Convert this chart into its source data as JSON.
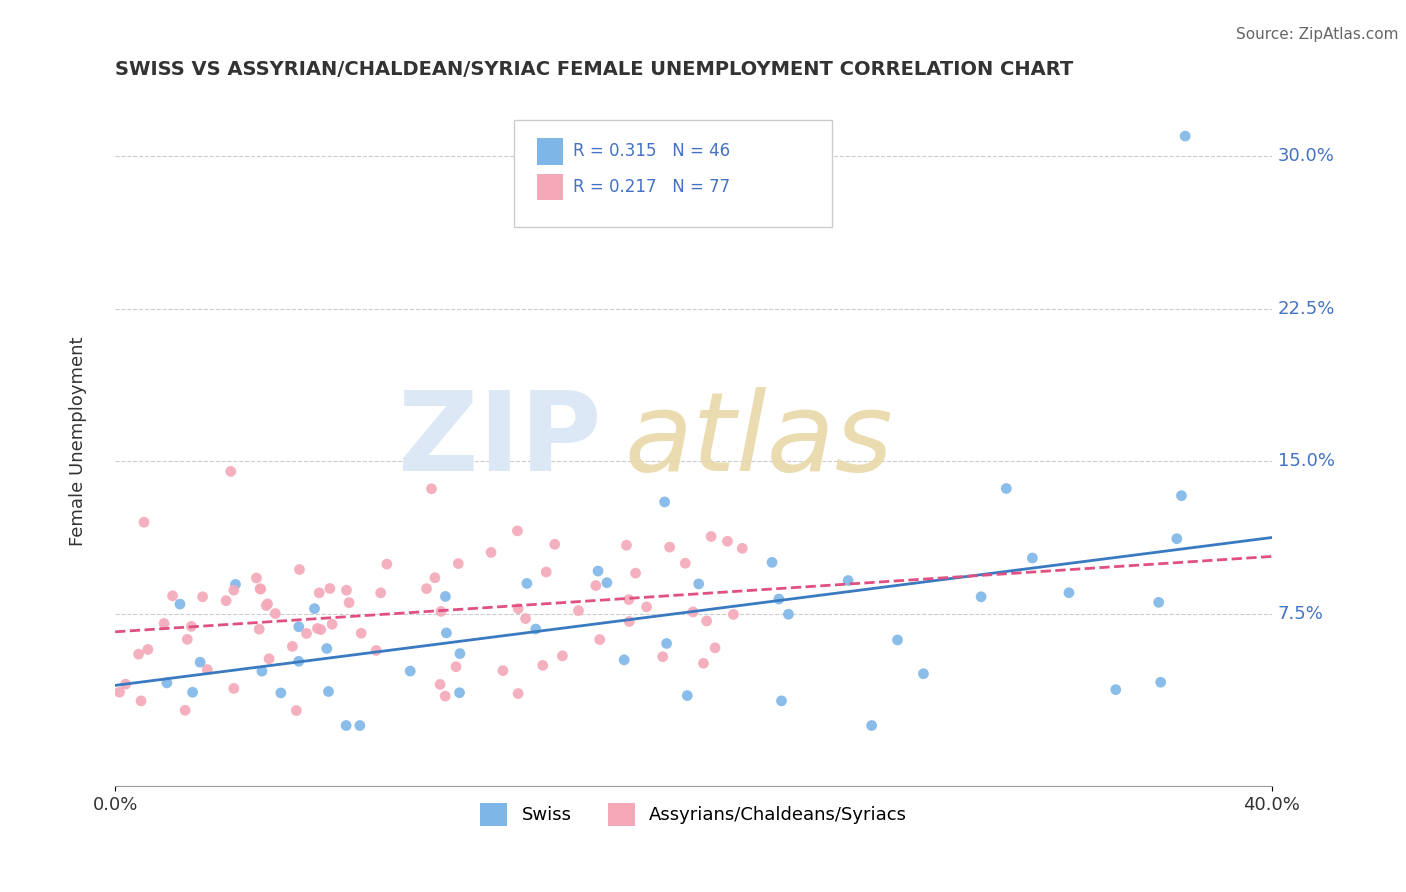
{
  "title": "SWISS VS ASSYRIAN/CHALDEAN/SYRIAC FEMALE UNEMPLOYMENT CORRELATION CHART",
  "source": "Source: ZipAtlas.com",
  "ylabel": "Female Unemployment",
  "yticks": [
    "30.0%",
    "22.5%",
    "15.0%",
    "7.5%"
  ],
  "ytick_vals": [
    0.3,
    0.225,
    0.15,
    0.075
  ],
  "xlim": [
    0.0,
    0.4
  ],
  "ylim": [
    -0.01,
    0.33
  ],
  "legend1_R": "0.315",
  "legend1_N": "46",
  "legend2_R": "0.217",
  "legend2_N": "77",
  "blue_color": "#7EB6E8",
  "pink_color": "#F4A8B8",
  "trend_blue": "#3A7AC0",
  "trend_pink": "#E05080",
  "text_blue": "#4472C4",
  "background": "#FFFFFF"
}
